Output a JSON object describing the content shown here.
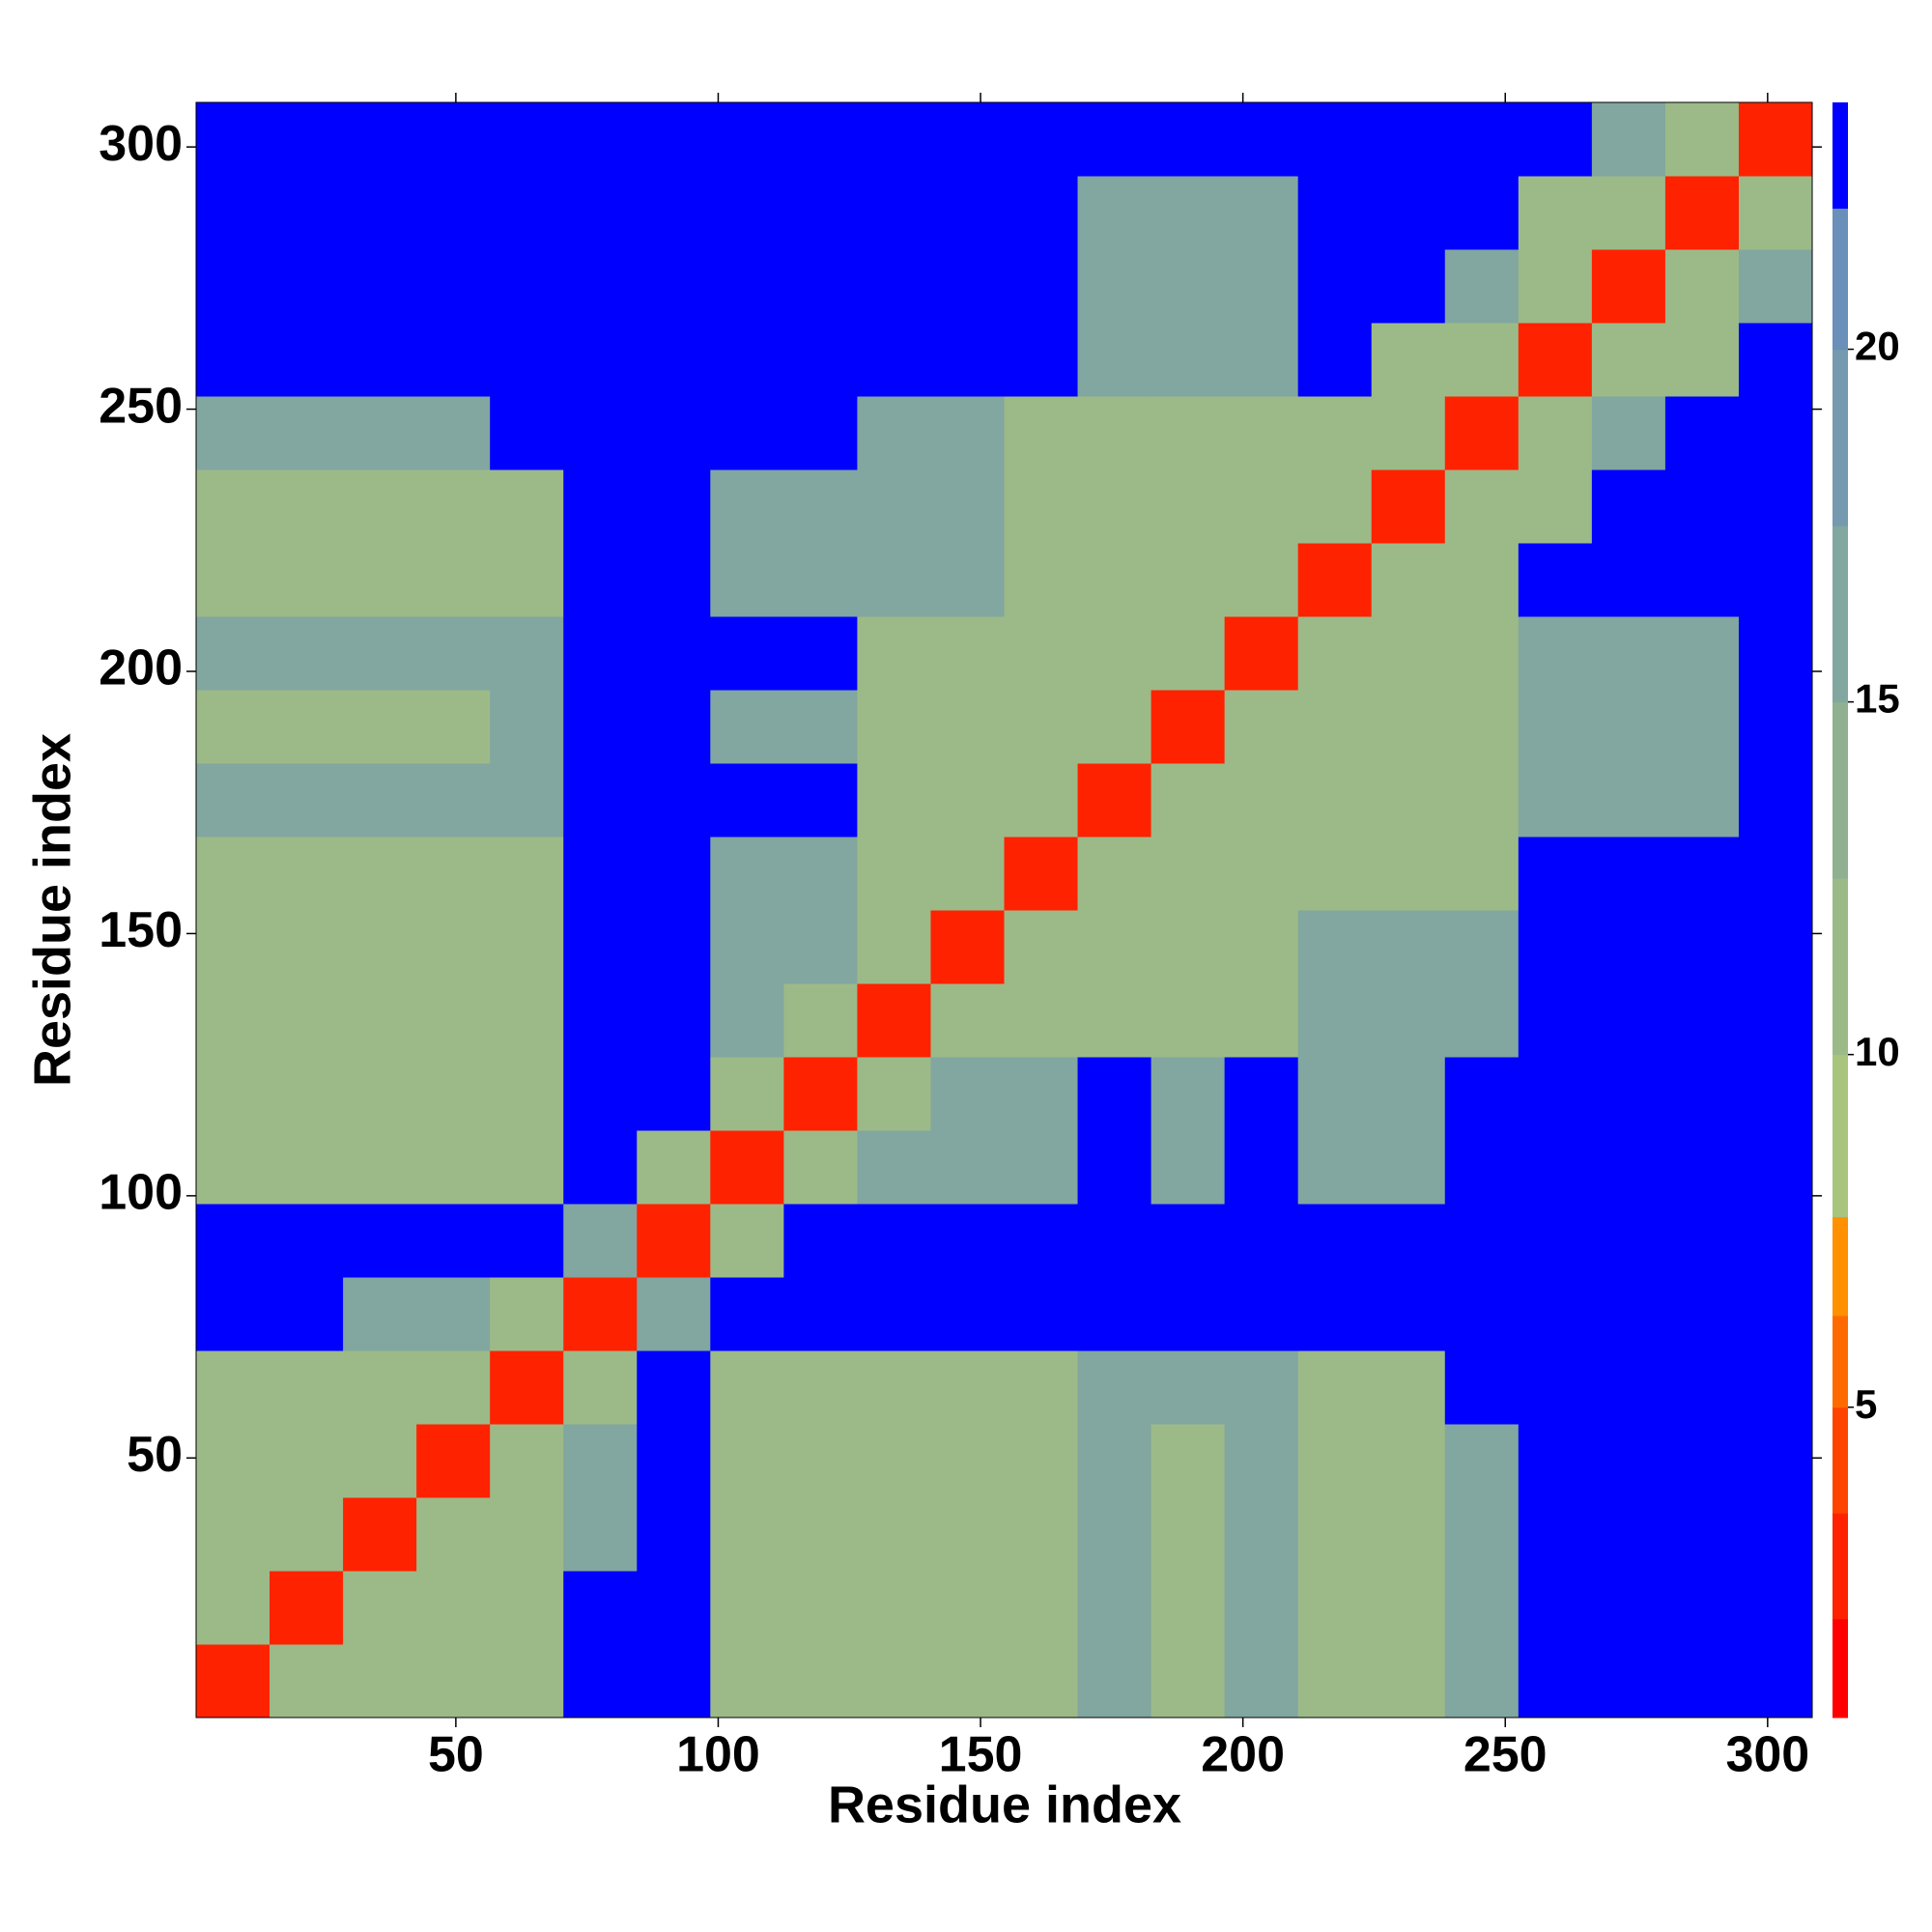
{
  "chart_data": {
    "type": "heatmap",
    "xlabel": "Residue index",
    "ylabel": "Residue index",
    "xlim": [
      0.5,
      308.5
    ],
    "ylim": [
      0.5,
      308.5
    ],
    "xticks": [
      50,
      100,
      150,
      200,
      250,
      300
    ],
    "yticks": [
      50,
      100,
      150,
      200,
      250,
      300
    ],
    "bins": [
      0.5,
      14.5,
      28.5,
      42.5,
      56.5,
      70.5,
      84.5,
      98.5,
      112.5,
      126.5,
      140.5,
      154.5,
      168.5,
      182.5,
      196.5,
      210.5,
      224.5,
      238.5,
      252.5,
      266.5,
      280.5,
      294.5,
      308.5
    ],
    "values": [
      [
        3,
        10,
        10,
        10,
        10,
        23,
        23,
        10,
        10,
        10,
        10,
        10,
        15,
        10,
        15,
        10,
        10,
        15,
        23,
        23,
        23,
        23
      ],
      [
        10,
        3,
        10,
        10,
        10,
        23,
        23,
        10,
        10,
        10,
        10,
        10,
        15,
        10,
        15,
        10,
        10,
        15,
        23,
        23,
        23,
        23
      ],
      [
        10,
        10,
        3,
        10,
        10,
        15,
        23,
        10,
        10,
        10,
        10,
        10,
        15,
        10,
        15,
        10,
        10,
        15,
        23,
        23,
        23,
        23
      ],
      [
        10,
        10,
        10,
        3,
        10,
        15,
        23,
        10,
        10,
        10,
        10,
        10,
        15,
        10,
        15,
        10,
        10,
        15,
        23,
        23,
        23,
        23
      ],
      [
        10,
        10,
        10,
        10,
        3,
        10,
        23,
        10,
        10,
        10,
        10,
        10,
        15,
        15,
        15,
        10,
        10,
        23,
        23,
        23,
        23,
        23
      ],
      [
        23,
        23,
        15,
        15,
        10,
        3,
        15,
        23,
        23,
        23,
        23,
        23,
        23,
        23,
        23,
        23,
        23,
        23,
        23,
        23,
        23,
        23
      ],
      [
        23,
        23,
        23,
        23,
        23,
        15,
        3,
        10,
        23,
        23,
        23,
        23,
        23,
        23,
        23,
        23,
        23,
        23,
        23,
        23,
        23,
        23
      ],
      [
        10,
        10,
        10,
        10,
        10,
        23,
        10,
        3,
        10,
        15,
        15,
        15,
        23,
        15,
        23,
        15,
        15,
        23,
        23,
        23,
        23,
        23
      ],
      [
        10,
        10,
        10,
        10,
        10,
        23,
        23,
        10,
        3,
        10,
        15,
        15,
        23,
        15,
        23,
        15,
        15,
        23,
        23,
        23,
        23,
        23
      ],
      [
        10,
        10,
        10,
        10,
        10,
        23,
        23,
        15,
        10,
        3,
        10,
        10,
        10,
        10,
        10,
        15,
        15,
        15,
        23,
        23,
        23,
        23
      ],
      [
        10,
        10,
        10,
        10,
        10,
        23,
        23,
        15,
        15,
        10,
        3,
        10,
        10,
        10,
        10,
        15,
        15,
        15,
        23,
        23,
        23,
        23
      ],
      [
        10,
        10,
        10,
        10,
        10,
        23,
        23,
        15,
        15,
        10,
        10,
        3,
        10,
        10,
        10,
        10,
        10,
        10,
        23,
        23,
        23,
        23
      ],
      [
        15,
        15,
        15,
        15,
        15,
        23,
        23,
        23,
        23,
        10,
        10,
        10,
        3,
        10,
        10,
        10,
        10,
        10,
        15,
        15,
        15,
        23
      ],
      [
        10,
        10,
        10,
        10,
        15,
        23,
        23,
        15,
        15,
        10,
        10,
        10,
        10,
        3,
        10,
        10,
        10,
        10,
        15,
        15,
        15,
        23
      ],
      [
        15,
        15,
        15,
        15,
        15,
        23,
        23,
        23,
        23,
        10,
        10,
        10,
        10,
        10,
        3,
        10,
        10,
        10,
        15,
        15,
        15,
        23
      ],
      [
        10,
        10,
        10,
        10,
        10,
        23,
        23,
        15,
        15,
        15,
        15,
        10,
        10,
        10,
        10,
        3,
        10,
        10,
        23,
        23,
        23,
        23
      ],
      [
        10,
        10,
        10,
        10,
        10,
        23,
        23,
        15,
        15,
        15,
        15,
        10,
        10,
        10,
        10,
        10,
        3,
        10,
        10,
        23,
        23,
        23
      ],
      [
        15,
        15,
        15,
        15,
        23,
        23,
        23,
        23,
        23,
        15,
        15,
        10,
        10,
        10,
        10,
        10,
        10,
        3,
        10,
        15,
        23,
        23
      ],
      [
        23,
        23,
        23,
        23,
        23,
        23,
        23,
        23,
        23,
        23,
        23,
        23,
        15,
        15,
        15,
        23,
        10,
        10,
        3,
        10,
        10,
        23
      ],
      [
        23,
        23,
        23,
        23,
        23,
        23,
        23,
        23,
        23,
        23,
        23,
        23,
        15,
        15,
        15,
        23,
        23,
        15,
        10,
        3,
        10,
        15
      ],
      [
        23,
        23,
        23,
        23,
        23,
        23,
        23,
        23,
        23,
        23,
        23,
        23,
        15,
        15,
        15,
        23,
        23,
        23,
        10,
        10,
        3,
        10
      ],
      [
        23,
        23,
        23,
        23,
        23,
        23,
        23,
        23,
        23,
        23,
        23,
        23,
        23,
        23,
        23,
        23,
        23,
        23,
        23,
        15,
        10,
        3
      ]
    ],
    "colorbar": {
      "levels": [
        0.6,
        2,
        3.5,
        5,
        6.3,
        7.7,
        10,
        12.5,
        15,
        17.5,
        20,
        22,
        23.5
      ],
      "colors": [
        "#ff0000",
        "#ff2200",
        "#ff4400",
        "#ff6a00",
        "#ff9000",
        "#a9c47c",
        "#9cba88",
        "#90b092",
        "#82a6a0",
        "#7599ae",
        "#6a8fb8",
        "#0000ff"
      ],
      "ticks": [
        5,
        10,
        15,
        20
      ]
    }
  }
}
